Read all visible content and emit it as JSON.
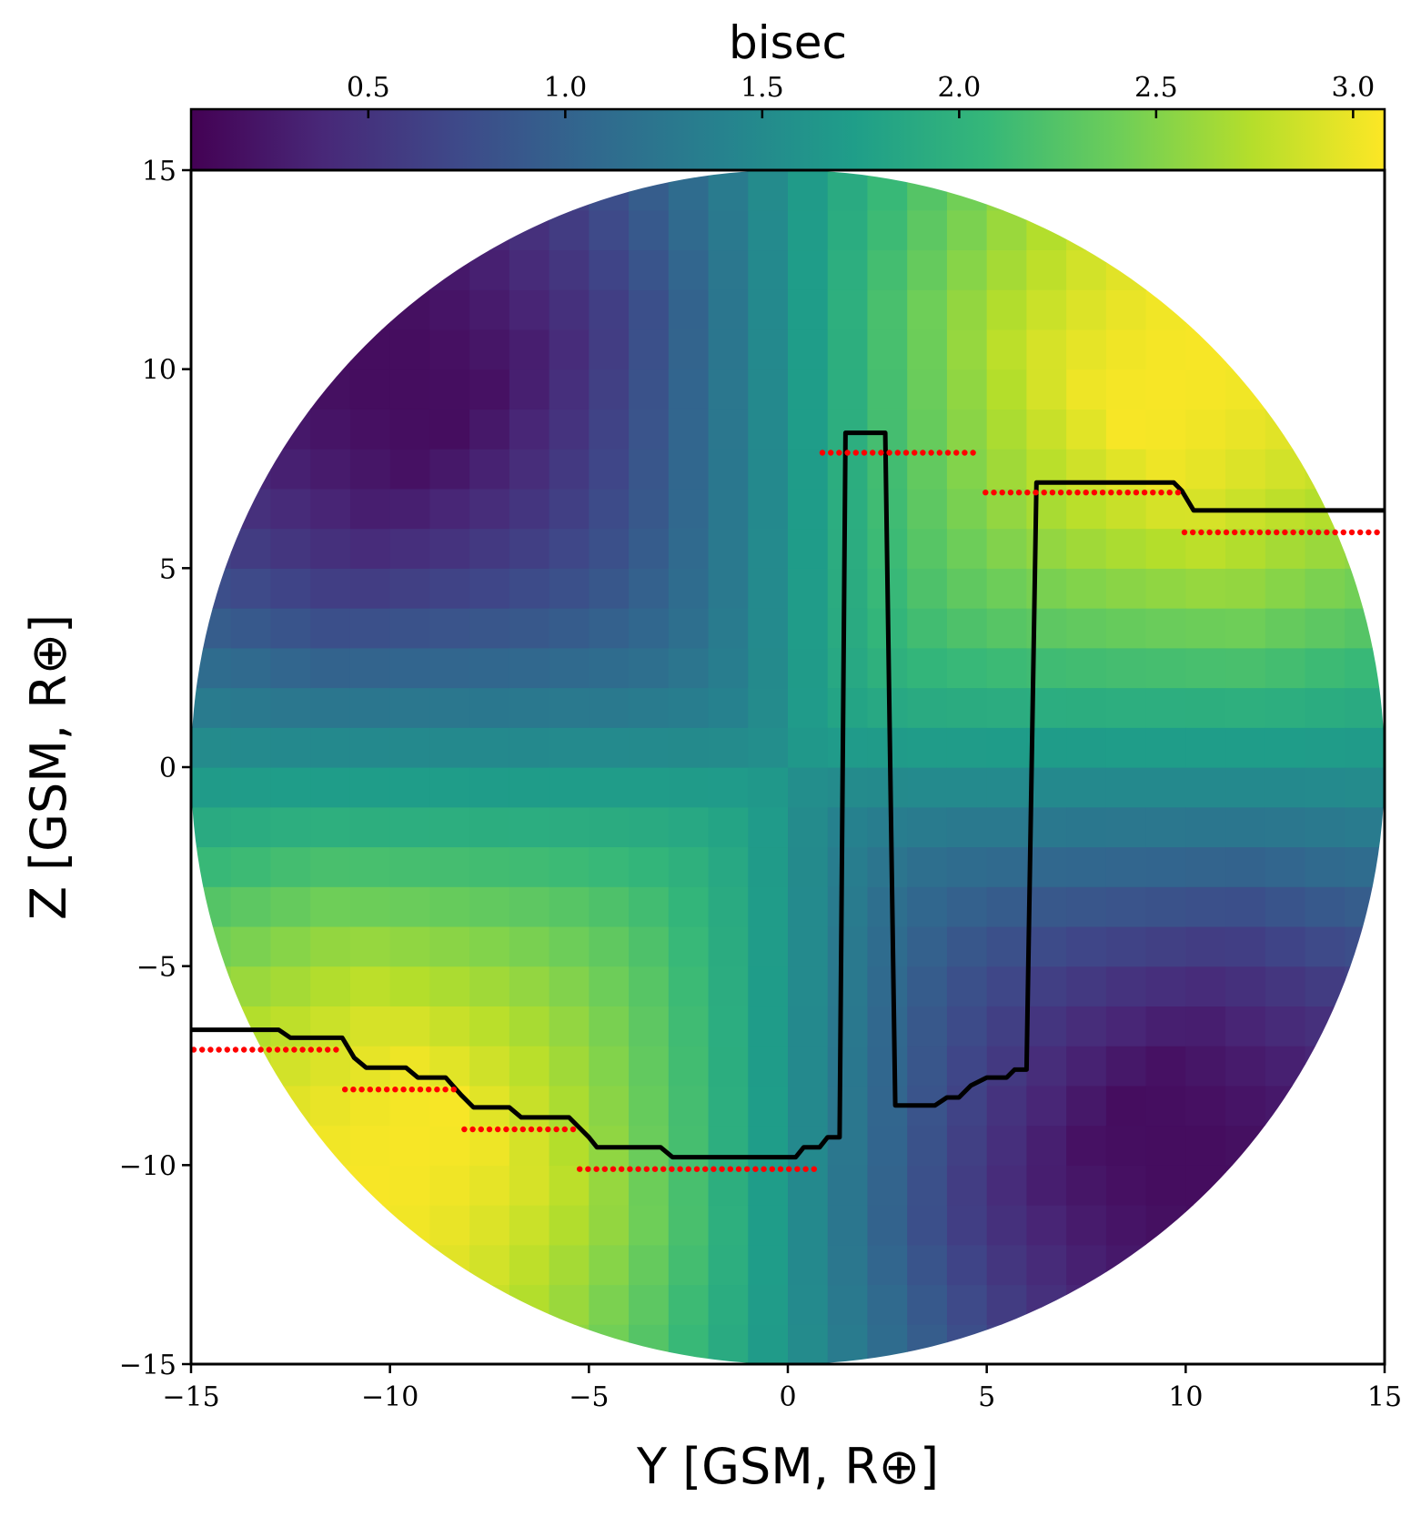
{
  "chart_data": {
    "type": "heatmap",
    "colorbar": {
      "title": "bisec",
      "range": [
        0.05,
        3.08
      ],
      "ticks": [
        0.5,
        1.0,
        1.5,
        2.0,
        2.5,
        3.0
      ],
      "tick_labels": [
        "0.5",
        "1.0",
        "1.5",
        "2.0",
        "2.5",
        "3.0"
      ],
      "colormap": "viridis",
      "placement": "top"
    },
    "xlabel": "Y [GSM, R⊕]",
    "ylabel": "Z [GSM, R⊕]",
    "xlim": [
      -15,
      15
    ],
    "ylim": [
      -15,
      15
    ],
    "xticks": [
      -15,
      -10,
      -5,
      0,
      5,
      10,
      15
    ],
    "xtick_labels": [
      "−15",
      "−10",
      "−5",
      "0",
      "5",
      "10",
      "15"
    ],
    "yticks": [
      -15,
      -10,
      -5,
      0,
      5,
      10,
      15
    ],
    "ytick_labels": [
      "−15",
      "−10",
      "−5",
      "0",
      "5",
      "10",
      "15"
    ],
    "grid": false,
    "heatmap": {
      "cell_size": 1,
      "domain": "circle of radius 15 centered at (0,0)",
      "pattern": "bisec increases toward +Y,+Z and -Y,-Z quadrants (up to ~3.0) and decreases toward -Y,+Z and +Y,-Z quadrants (down to ~0.1); about 1.6 near the center"
    },
    "black_line": {
      "points": [
        [
          -15,
          -6.6
        ],
        [
          -12.8,
          -6.6
        ],
        [
          -12.5,
          -6.8
        ],
        [
          -11.2,
          -6.8
        ],
        [
          -10.9,
          -7.3
        ],
        [
          -10.6,
          -7.55
        ],
        [
          -9.6,
          -7.55
        ],
        [
          -9.3,
          -7.8
        ],
        [
          -8.6,
          -7.8
        ],
        [
          -8.2,
          -8.25
        ],
        [
          -7.9,
          -8.55
        ],
        [
          -7.0,
          -8.55
        ],
        [
          -6.7,
          -8.8
        ],
        [
          -5.5,
          -8.8
        ],
        [
          -5.0,
          -9.3
        ],
        [
          -4.8,
          -9.55
        ],
        [
          -3.2,
          -9.55
        ],
        [
          -2.9,
          -9.8
        ],
        [
          0.2,
          -9.8
        ],
        [
          0.4,
          -9.55
        ],
        [
          0.8,
          -9.55
        ],
        [
          1.0,
          -9.3
        ],
        [
          1.3,
          -9.3
        ],
        [
          1.45,
          8.4
        ],
        [
          2.45,
          8.4
        ],
        [
          2.7,
          -8.5
        ],
        [
          3.7,
          -8.5
        ],
        [
          4.0,
          -8.3
        ],
        [
          4.3,
          -8.3
        ],
        [
          4.6,
          -8.0
        ],
        [
          5.0,
          -7.8
        ],
        [
          5.5,
          -7.8
        ],
        [
          5.7,
          -7.6
        ],
        [
          6.0,
          -7.6
        ],
        [
          6.25,
          7.15
        ],
        [
          9.7,
          7.15
        ],
        [
          9.9,
          6.95
        ],
        [
          10.2,
          6.45
        ],
        [
          15,
          6.45
        ]
      ],
      "color": "#000000"
    },
    "red_dotted_segments": {
      "color": "#ff0000",
      "segments": [
        {
          "x": [
            -15.0,
            -11.2
          ],
          "y": -7.1
        },
        {
          "x": [
            -11.2,
            -8.2
          ],
          "y": -8.1
        },
        {
          "x": [
            -8.2,
            -5.3
          ],
          "y": -9.1
        },
        {
          "x": [
            -5.3,
            0.8
          ],
          "y": -10.1
        },
        {
          "x": [
            0.8,
            4.7
          ],
          "y": 7.9
        },
        {
          "x": [
            4.9,
            9.9
          ],
          "y": 6.9
        },
        {
          "x": [
            9.9,
            15.0
          ],
          "y": 5.9
        }
      ]
    }
  }
}
